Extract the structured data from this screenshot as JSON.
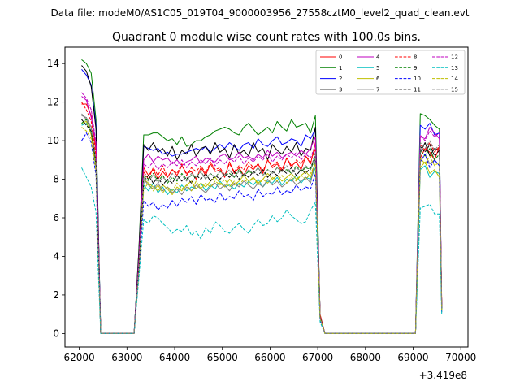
{
  "chart_data": {
    "type": "line",
    "suptitle": "Data file: modeM0/AS1C05_019T04_9000003956_27558cztM0_level2_quad_clean.evt",
    "title": "Quadrant 0 module wise count rates with 100.0s bins.",
    "xlabel": "",
    "ylabel": "",
    "offset_label": "+3.419e8",
    "xlim": [
      61700,
      70150
    ],
    "ylim": [
      -0.7,
      14.85
    ],
    "xticks": [
      62000,
      63000,
      64000,
      65000,
      66000,
      67000,
      68000,
      69000,
      70000
    ],
    "xtick_labels": [
      "62000",
      "63000",
      "64000",
      "65000",
      "66000",
      "67000",
      "68000",
      "69000",
      "70000"
    ],
    "yticks": [
      0,
      2,
      4,
      6,
      8,
      10,
      12,
      14
    ],
    "ytick_labels": [
      "0",
      "2",
      "4",
      "6",
      "8",
      "10",
      "12",
      "14"
    ],
    "segments": [
      {
        "start": 62050,
        "end": 62350,
        "gap_after": [
          62450,
          63150
        ]
      },
      {
        "start": 63350,
        "end": 66950,
        "gap_after": [
          67150,
          69050
        ]
      },
      {
        "start": 69250,
        "end": 69650
      }
    ],
    "legend": {
      "location": "top-right",
      "ncol": 4
    },
    "series": [
      {
        "name": "0",
        "color": "#ff0000",
        "dash": "solid",
        "seg1": [
          11.9,
          11.9,
          11.3,
          9.5
        ],
        "mid": [
          3.4,
          8.6,
          8.2,
          8.5,
          8.0,
          8.4,
          8.1,
          8.5,
          8.2,
          8.7,
          8.3,
          8.4,
          8.0,
          8.6,
          8.2,
          8.8,
          8.4,
          8.5,
          8.1,
          8.9,
          8.3,
          8.6,
          8.2,
          8.7,
          8.5,
          8.8,
          8.3,
          9.0,
          8.6,
          8.8,
          8.4,
          9.1,
          8.7,
          8.9,
          8.5,
          9.2,
          8.8,
          9.9
        ],
        "edge": [
          1.0,
          0.6
        ],
        "seg3": [
          9.1,
          9.6,
          9.4,
          9.0,
          9.7
        ],
        "end": 1.6
      },
      {
        "name": "1",
        "color": "#008000",
        "dash": "solid",
        "seg1": [
          14.2,
          14.0,
          13.5,
          11.1
        ],
        "mid": [
          4.4,
          10.3,
          10.3,
          10.4,
          10.4,
          10.2,
          10.0,
          10.1,
          9.8,
          10.2,
          9.7,
          9.8,
          10.0,
          10.0,
          10.2,
          10.3,
          10.5,
          10.6,
          10.7,
          10.6,
          10.4,
          10.3,
          10.7,
          10.9,
          10.6,
          10.3,
          10.5,
          10.7,
          10.4,
          11.0,
          10.7,
          10.5,
          11.1,
          10.7,
          10.8,
          10.9,
          10.4,
          11.3
        ],
        "edge": [
          0.9,
          0.6
        ],
        "seg3": [
          11.4,
          11.3,
          11.1,
          10.8,
          10.6
        ],
        "end": 1.2
      },
      {
        "name": "2",
        "color": "#0000ff",
        "dash": "solid",
        "seg1": [
          13.7,
          13.4,
          12.9,
          10.8
        ],
        "mid": [
          4.2,
          9.7,
          9.6,
          9.5,
          9.6,
          9.3,
          9.4,
          9.2,
          9.3,
          9.3,
          9.4,
          9.5,
          9.6,
          9.5,
          9.7,
          9.4,
          9.6,
          9.8,
          9.6,
          9.9,
          9.7,
          9.5,
          9.8,
          9.9,
          9.6,
          10.1,
          9.8,
          9.7,
          10.0,
          10.2,
          9.8,
          9.9,
          10.1,
          10.0,
          9.7,
          10.3,
          10.1,
          10.6
        ],
        "edge": [
          0.9,
          0.6
        ],
        "seg3": [
          10.8,
          10.6,
          10.9,
          10.3,
          10.4
        ],
        "end": 1.3
      },
      {
        "name": "3",
        "color": "#000000",
        "dash": "solid",
        "seg1": [
          13.9,
          13.6,
          12.8,
          10.6
        ],
        "mid": [
          4.3,
          9.8,
          9.5,
          9.9,
          9.4,
          9.6,
          9.2,
          9.7,
          9.0,
          9.5,
          9.3,
          9.8,
          9.2,
          9.6,
          9.7,
          9.3,
          9.9,
          9.4,
          9.6,
          9.1,
          9.8,
          9.3,
          9.5,
          9.2,
          9.9,
          9.4,
          9.6,
          9.0,
          9.8,
          9.5,
          9.3,
          9.7,
          9.4,
          9.9,
          9.2,
          9.6,
          9.5,
          10.7
        ],
        "edge": [
          0.9,
          0.6
        ],
        "seg3": [
          9.4,
          9.9,
          9.2,
          9.6,
          9.5
        ],
        "end": 1.4
      },
      {
        "name": "4",
        "color": "#bf00bf",
        "dash": "solid",
        "seg1": [
          12.3,
          12.1,
          11.2,
          9.8
        ],
        "mid": [
          3.9,
          9.0,
          9.3,
          8.9,
          9.2,
          9.0,
          9.1,
          8.8,
          9.0,
          8.7,
          8.9,
          9.0,
          9.2,
          8.8,
          9.1,
          9.0,
          8.9,
          9.2,
          9.3,
          9.0,
          9.1,
          9.4,
          9.1,
          9.2,
          9.0,
          9.3,
          9.1,
          9.5,
          9.2,
          9.4,
          9.1,
          9.3,
          9.4,
          9.2,
          9.5,
          9.3,
          9.6,
          10.2
        ],
        "edge": [
          0.8,
          0.6
        ],
        "seg3": [
          10.2,
          10.1,
          10.7,
          10.4,
          10.1
        ],
        "end": 1.3
      },
      {
        "name": "5",
        "color": "#00bfbf",
        "dash": "solid",
        "seg1": [
          10.8,
          10.9,
          10.4,
          8.6
        ],
        "mid": [
          3.3,
          7.7,
          7.4,
          7.8,
          7.3,
          7.6,
          7.2,
          7.5,
          7.3,
          7.7,
          7.4,
          7.6,
          7.5,
          7.8,
          7.4,
          7.7,
          7.5,
          7.9,
          7.6,
          7.7,
          7.5,
          7.8,
          7.6,
          7.9,
          7.7,
          8.0,
          7.6,
          7.9,
          7.8,
          8.1,
          7.7,
          8.0,
          7.9,
          8.2,
          7.8,
          8.1,
          8.0,
          8.6
        ],
        "edge": [
          0.8,
          0.6
        ],
        "seg3": [
          8.5,
          8.7,
          8.1,
          8.4,
          8.3
        ],
        "end": 1.2
      },
      {
        "name": "6",
        "color": "#bfbf00",
        "dash": "solid",
        "seg1": [
          10.9,
          11.0,
          10.3,
          8.7
        ],
        "mid": [
          3.5,
          8.0,
          7.8,
          7.6,
          7.4,
          7.7,
          7.5,
          7.2,
          7.6,
          7.4,
          7.7,
          7.9,
          7.5,
          7.8,
          7.6,
          7.9,
          8.1,
          7.8,
          7.6,
          8.0,
          7.7,
          7.9,
          8.2,
          7.9,
          8.1,
          7.8,
          8.0,
          8.3,
          8.0,
          8.2,
          7.9,
          8.1,
          8.3,
          8.0,
          8.2,
          8.4,
          8.1,
          8.9
        ],
        "edge": [
          0.8,
          0.6
        ],
        "seg3": [
          8.6,
          8.9,
          8.3,
          8.5,
          8.1
        ],
        "end": 1.1
      },
      {
        "name": "7",
        "color": "#808080",
        "dash": "solid",
        "seg1": [
          11.3,
          11.2,
          10.7,
          9.0
        ],
        "mid": [
          3.6,
          8.0,
          7.7,
          7.5,
          7.8,
          7.4,
          7.6,
          7.3,
          7.5,
          7.2,
          7.6,
          7.4,
          7.7,
          7.5,
          7.3,
          7.6,
          7.8,
          7.5,
          7.7,
          7.4,
          7.8,
          7.6,
          7.9,
          7.7,
          7.5,
          7.8,
          7.6,
          8.0,
          7.7,
          7.9,
          7.6,
          7.8,
          8.0,
          7.7,
          7.9,
          8.1,
          7.8,
          9.0
        ],
        "edge": [
          0.8,
          0.6
        ],
        "seg3": [
          8.9,
          9.3,
          8.8,
          9.0,
          8.7
        ],
        "end": 1.2
      },
      {
        "name": "8",
        "color": "#ff0000",
        "dash": "dashed",
        "seg1": [
          12.0,
          11.6,
          11.0,
          9.2
        ],
        "mid": [
          3.7,
          8.4,
          8.0,
          8.6,
          8.2,
          8.7,
          8.1,
          8.5,
          8.3,
          8.8,
          8.2,
          8.6,
          8.4,
          8.7,
          8.3,
          8.9,
          8.5,
          8.6,
          8.2,
          8.8,
          8.4,
          8.7,
          8.5,
          8.9,
          8.6,
          8.8,
          8.4,
          9.0,
          8.7,
          8.9,
          8.5,
          9.1,
          8.6,
          9.0,
          8.8,
          9.2,
          8.9,
          9.6
        ],
        "edge": [
          0.9,
          0.6
        ],
        "seg3": [
          9.8,
          9.5,
          9.9,
          9.4,
          9.7
        ],
        "end": 1.5
      },
      {
        "name": "9",
        "color": "#008000",
        "dash": "dashed",
        "seg1": [
          10.9,
          11.1,
          10.5,
          8.9
        ],
        "mid": [
          3.6,
          8.2,
          8.0,
          8.3,
          7.9,
          8.2,
          7.8,
          8.1,
          7.9,
          8.3,
          8.0,
          8.2,
          8.1,
          8.4,
          8.0,
          8.3,
          8.1,
          8.4,
          8.2,
          8.3,
          8.1,
          8.5,
          8.2,
          8.4,
          8.3,
          8.6,
          8.2,
          8.5,
          8.3,
          8.6,
          8.4,
          8.5,
          8.3,
          8.7,
          8.4,
          8.6,
          8.5,
          9.1
        ],
        "edge": [
          0.8,
          0.6
        ],
        "seg3": [
          9.5,
          9.2,
          9.6,
          9.0,
          9.3
        ],
        "end": 1.3
      },
      {
        "name": "10",
        "color": "#0000ff",
        "dash": "dashed",
        "seg1": [
          10.0,
          10.4,
          9.9,
          8.2
        ],
        "mid": [
          3.1,
          6.9,
          6.6,
          6.8,
          6.4,
          6.7,
          6.5,
          6.9,
          6.6,
          7.0,
          6.8,
          7.1,
          6.7,
          7.2,
          6.9,
          7.0,
          6.8,
          7.3,
          6.9,
          7.1,
          7.0,
          7.4,
          7.1,
          7.2,
          6.9,
          7.5,
          7.1,
          7.3,
          7.2,
          7.6,
          7.2,
          7.4,
          7.3,
          7.7,
          7.4,
          7.6,
          7.5,
          8.3
        ],
        "edge": [
          0.7,
          0.6
        ],
        "seg3": [
          8.9,
          9.3,
          8.6,
          9.0,
          8.7
        ],
        "end": 1.1
      },
      {
        "name": "11",
        "color": "#000000",
        "dash": "dashed",
        "seg1": [
          11.1,
          10.8,
          10.5,
          8.8
        ],
        "mid": [
          3.4,
          7.9,
          8.2,
          7.8,
          8.1,
          7.7,
          8.0,
          7.8,
          8.2,
          7.9,
          8.1,
          7.8,
          8.2,
          8.0,
          8.3,
          7.9,
          8.2,
          8.0,
          8.3,
          8.1,
          8.4,
          8.0,
          8.3,
          8.1,
          8.4,
          8.2,
          8.5,
          8.1,
          8.4,
          8.2,
          8.5,
          8.3,
          8.6,
          8.2,
          8.5,
          8.3,
          8.6,
          9.2
        ],
        "edge": [
          0.8,
          0.6
        ],
        "seg3": [
          9.7,
          9.4,
          9.8,
          9.2,
          9.5
        ],
        "end": 1.3
      },
      {
        "name": "12",
        "color": "#bf00bf",
        "dash": "dashed",
        "seg1": [
          12.5,
          12.2,
          11.6,
          9.9
        ],
        "mid": [
          3.8,
          8.8,
          8.6,
          8.9,
          8.5,
          8.8,
          8.6,
          8.9,
          8.7,
          9.0,
          8.6,
          8.9,
          8.7,
          9.0,
          8.8,
          9.1,
          8.7,
          9.0,
          8.8,
          9.1,
          8.9,
          9.2,
          8.8,
          9.1,
          8.9,
          9.2,
          9.0,
          9.3,
          8.9,
          9.2,
          9.0,
          9.3,
          9.1,
          9.4,
          9.0,
          9.3,
          9.1,
          9.8
        ],
        "edge": [
          0.8,
          0.6
        ],
        "seg3": [
          10.3,
          10.0,
          10.5,
          10.2,
          10.4
        ],
        "end": 1.4
      },
      {
        "name": "13",
        "color": "#00bfbf",
        "dash": "dashed",
        "seg1": [
          8.6,
          8.1,
          7.6,
          6.3
        ],
        "mid": [
          2.9,
          5.9,
          5.7,
          6.1,
          6.0,
          5.7,
          5.5,
          5.2,
          5.4,
          5.3,
          5.6,
          5.1,
          5.3,
          4.9,
          5.5,
          5.2,
          5.8,
          5.6,
          5.3,
          5.2,
          5.5,
          5.7,
          5.4,
          5.2,
          5.6,
          5.9,
          5.6,
          5.7,
          6.1,
          5.8,
          6.0,
          6.4,
          6.1,
          5.9,
          5.7,
          5.8,
          6.4,
          6.8
        ],
        "edge": [
          0.6,
          0.6
        ],
        "seg3": [
          6.5,
          6.6,
          6.7,
          6.2,
          6.2
        ],
        "end": 1.0
      },
      {
        "name": "14",
        "color": "#bfbf00",
        "dash": "dashed",
        "seg1": [
          10.7,
          10.5,
          10.1,
          8.4
        ],
        "mid": [
          3.3,
          7.5,
          7.8,
          7.4,
          7.7,
          7.3,
          7.6,
          7.4,
          7.8,
          7.5,
          7.7,
          7.4,
          7.9,
          7.5,
          7.8,
          7.6,
          7.9,
          7.7,
          8.0,
          7.6,
          7.9,
          7.7,
          8.0,
          7.8,
          8.1,
          7.7,
          8.0,
          7.8,
          8.1,
          7.9,
          8.2,
          7.8,
          8.1,
          7.9,
          8.2,
          8.0,
          8.3,
          8.8
        ],
        "edge": [
          0.8,
          0.6
        ],
        "seg3": [
          9.1,
          8.8,
          9.2,
          8.7,
          8.9
        ],
        "end": 1.2
      },
      {
        "name": "15",
        "color": "#808080",
        "dash": "dashed",
        "seg1": [
          11.4,
          11.1,
          10.6,
          8.9
        ],
        "mid": [
          3.5,
          8.1,
          7.9,
          8.2,
          7.8,
          8.1,
          7.9,
          8.3,
          8.0,
          8.2,
          7.9,
          8.3,
          8.1,
          8.4,
          8.0,
          8.3,
          8.1,
          8.4,
          8.2,
          8.5,
          8.1,
          8.4,
          8.2,
          8.5,
          8.3,
          8.6,
          8.2,
          8.5,
          8.3,
          8.6,
          8.4,
          8.7,
          8.3,
          8.6,
          8.4,
          8.7,
          8.5,
          9.4
        ],
        "edge": [
          0.8,
          0.6
        ],
        "seg3": [
          9.9,
          9.6,
          10.0,
          9.5,
          9.8
        ],
        "end": 1.3
      }
    ]
  }
}
